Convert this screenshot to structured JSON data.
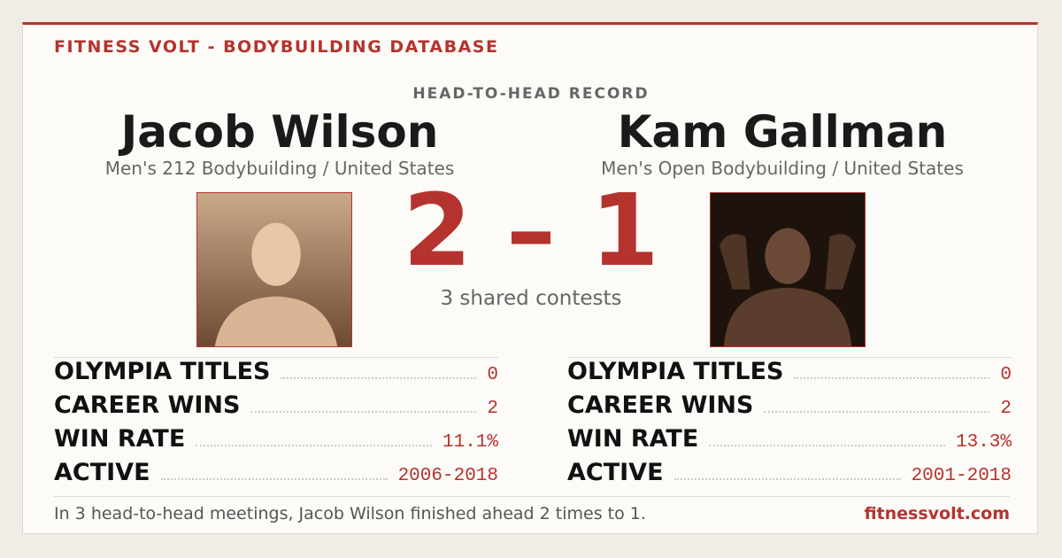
{
  "header": {
    "brand": "FITNESS VOLT - BODYBUILDING DATABASE",
    "subtitle": "HEAD-TO-HEAD RECORD"
  },
  "athletes": [
    {
      "name": "Jacob Wilson",
      "division": "Men's 212 Bodybuilding / United States",
      "stats": [
        {
          "label": "OLYMPIA TITLES",
          "value": "0"
        },
        {
          "label": "CAREER WINS",
          "value": "2"
        },
        {
          "label": "WIN RATE",
          "value": "11.1%"
        },
        {
          "label": "ACTIVE",
          "value": "2006-2018"
        }
      ]
    },
    {
      "name": "Kam Gallman",
      "division": "Men's Open Bodybuilding / United States",
      "stats": [
        {
          "label": "OLYMPIA TITLES",
          "value": "0"
        },
        {
          "label": "CAREER WINS",
          "value": "2"
        },
        {
          "label": "WIN RATE",
          "value": "13.3%"
        },
        {
          "label": "ACTIVE",
          "value": "2001-2018"
        }
      ]
    }
  ],
  "score": {
    "left": 2,
    "separator": "–",
    "right": 1,
    "caption": "3 shared contests"
  },
  "footer": {
    "note": "In 3 head-to-head meetings, Jacob Wilson finished ahead 2 times to 1.",
    "site": "fitnessvolt.com"
  }
}
